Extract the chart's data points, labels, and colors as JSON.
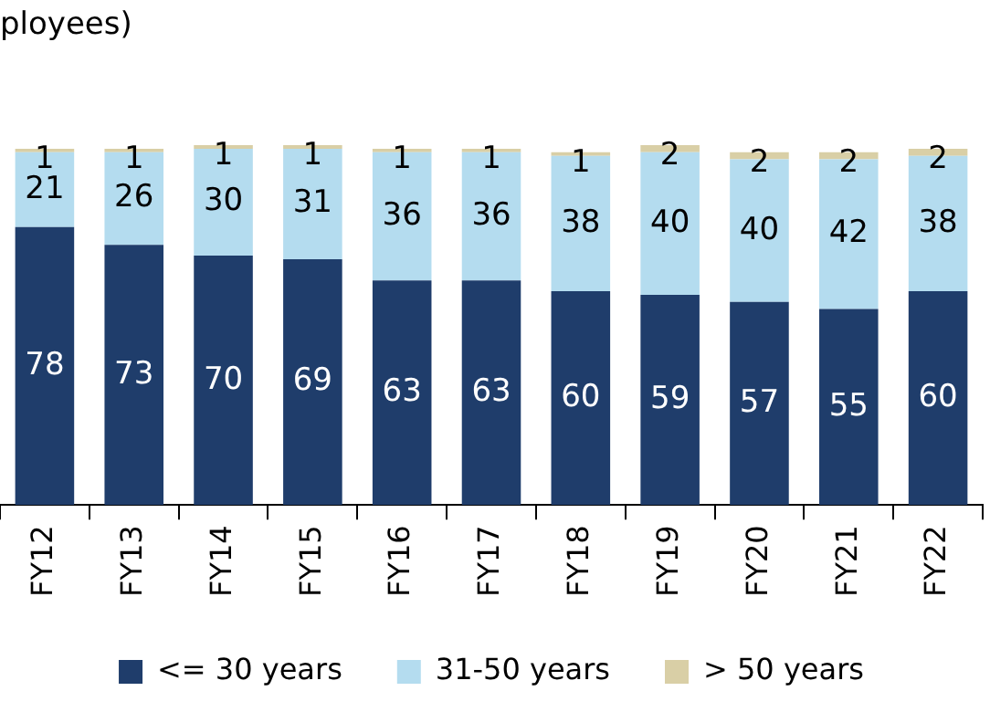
{
  "chart_data": {
    "type": "bar",
    "title": "ployees)",
    "stacked": true,
    "data_labels": true,
    "legend": "bottom",
    "grid": false,
    "categories": [
      "FY12",
      "FY13",
      "FY14",
      "FY15",
      "FY16",
      "FY17",
      "FY18",
      "FY19",
      "FY20",
      "FY21",
      "FY22"
    ],
    "series": [
      {
        "name": "<= 30 years",
        "color": "#1f3d6b",
        "values": [
          78,
          73,
          70,
          69,
          63,
          63,
          60,
          59,
          57,
          55,
          60
        ]
      },
      {
        "name": "31-50 years",
        "color": "#b4dcef",
        "values": [
          21,
          26,
          30,
          31,
          36,
          36,
          38,
          40,
          40,
          42,
          38
        ]
      },
      {
        "name": "> 50 years",
        "color": "#d9cfa6",
        "values": [
          1,
          1,
          1,
          1,
          1,
          1,
          1,
          2,
          2,
          2,
          2
        ]
      }
    ]
  }
}
